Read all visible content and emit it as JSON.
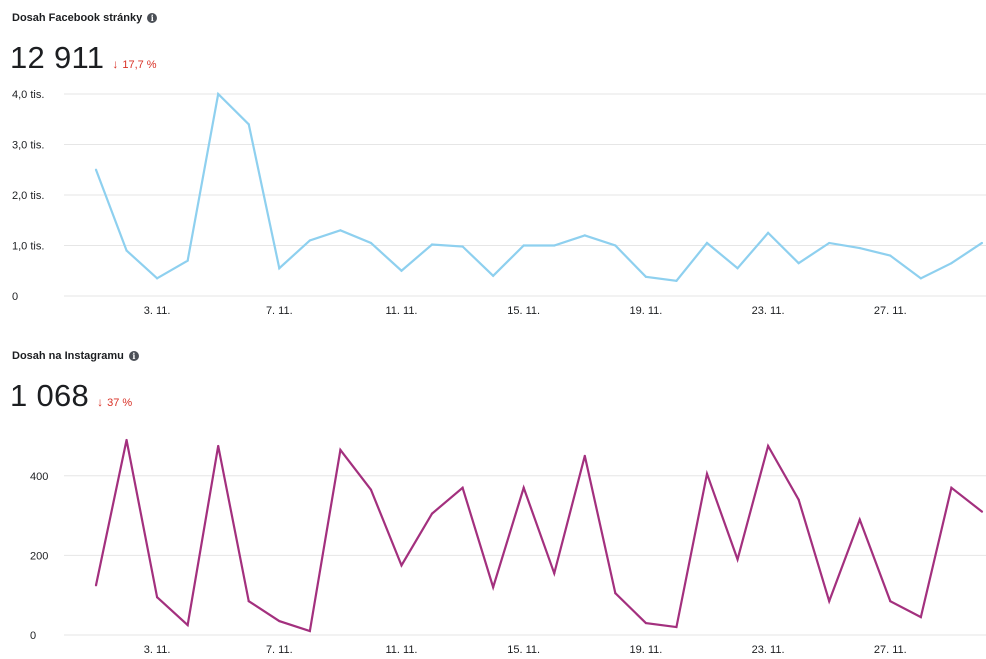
{
  "facebook": {
    "title": "Dosah Facebook stránky",
    "info_icon": "info-icon",
    "metric": "12 911",
    "change": "17,7 %",
    "change_direction": "down",
    "change_color": "#d93025"
  },
  "instagram": {
    "title": "Dosah na Instagramu",
    "info_icon": "info-icon",
    "metric": "1 068",
    "change": "37 %",
    "change_direction": "down",
    "change_color": "#d93025"
  },
  "chart_data": [
    {
      "type": "line",
      "x": [
        "1. 11.",
        "2. 11.",
        "3. 11.",
        "4. 11.",
        "5. 11.",
        "6. 11.",
        "7. 11.",
        "8. 11.",
        "9. 11.",
        "10. 11.",
        "11. 11.",
        "12. 11.",
        "13. 11.",
        "14. 11.",
        "15. 11.",
        "16. 11.",
        "17. 11.",
        "18. 11.",
        "19. 11.",
        "20. 11.",
        "21. 11.",
        "22. 11.",
        "23. 11.",
        "24. 11.",
        "25. 11.",
        "26. 11.",
        "27. 11.",
        "28. 11.",
        "29. 11.",
        "30. 11."
      ],
      "series": [
        {
          "color": "#8ed0ef",
          "values": [
            2500,
            900,
            350,
            700,
            4000,
            3400,
            550,
            1100,
            1300,
            1050,
            500,
            1020,
            980,
            400,
            1000,
            1000,
            1200,
            1000,
            380,
            300,
            1050,
            550,
            1250,
            650,
            1050,
            950,
            800,
            350,
            650,
            1050
          ]
        }
      ],
      "y_ticks": [
        "0",
        "1,0 tis.",
        "2,0 tis.",
        "3,0 tis.",
        "4,0 tis."
      ],
      "y_tick_values": [
        0,
        1000,
        2000,
        3000,
        4000
      ],
      "x_tick_labels": [
        "3. 11.",
        "7. 11.",
        "11. 11.",
        "15. 11.",
        "19. 11.",
        "23. 11.",
        "27. 11."
      ],
      "x_tick_indices": [
        2,
        6,
        10,
        14,
        18,
        22,
        26
      ],
      "ylim": [
        0,
        4000
      ],
      "grid": true
    },
    {
      "type": "line",
      "x": [
        "1. 11.",
        "2. 11.",
        "3. 11.",
        "4. 11.",
        "5. 11.",
        "6. 11.",
        "7. 11.",
        "8. 11.",
        "9. 11.",
        "10. 11.",
        "11. 11.",
        "12. 11.",
        "13. 11.",
        "14. 11.",
        "15. 11.",
        "16. 11.",
        "17. 11.",
        "18. 11.",
        "19. 11.",
        "20. 11.",
        "21. 11.",
        "22. 11.",
        "23. 11.",
        "24. 11.",
        "25. 11.",
        "26. 11.",
        "27. 11.",
        "28. 11.",
        "29. 11.",
        "30. 11."
      ],
      "series": [
        {
          "color": "#a3307e",
          "values": [
            125,
            490,
            95,
            25,
            475,
            85,
            35,
            10,
            465,
            365,
            175,
            305,
            370,
            120,
            370,
            155,
            450,
            105,
            30,
            20,
            405,
            190,
            475,
            340,
            85,
            290,
            85,
            45,
            370,
            310
          ]
        }
      ],
      "y_ticks": [
        "0",
        "200",
        "400"
      ],
      "y_tick_values": [
        0,
        200,
        400
      ],
      "x_tick_labels": [
        "3. 11.",
        "7. 11.",
        "11. 11.",
        "15. 11.",
        "19. 11.",
        "23. 11.",
        "27. 11."
      ],
      "x_tick_indices": [
        2,
        6,
        10,
        14,
        18,
        22,
        26
      ],
      "ylim": [
        0,
        500
      ],
      "grid": true
    }
  ]
}
